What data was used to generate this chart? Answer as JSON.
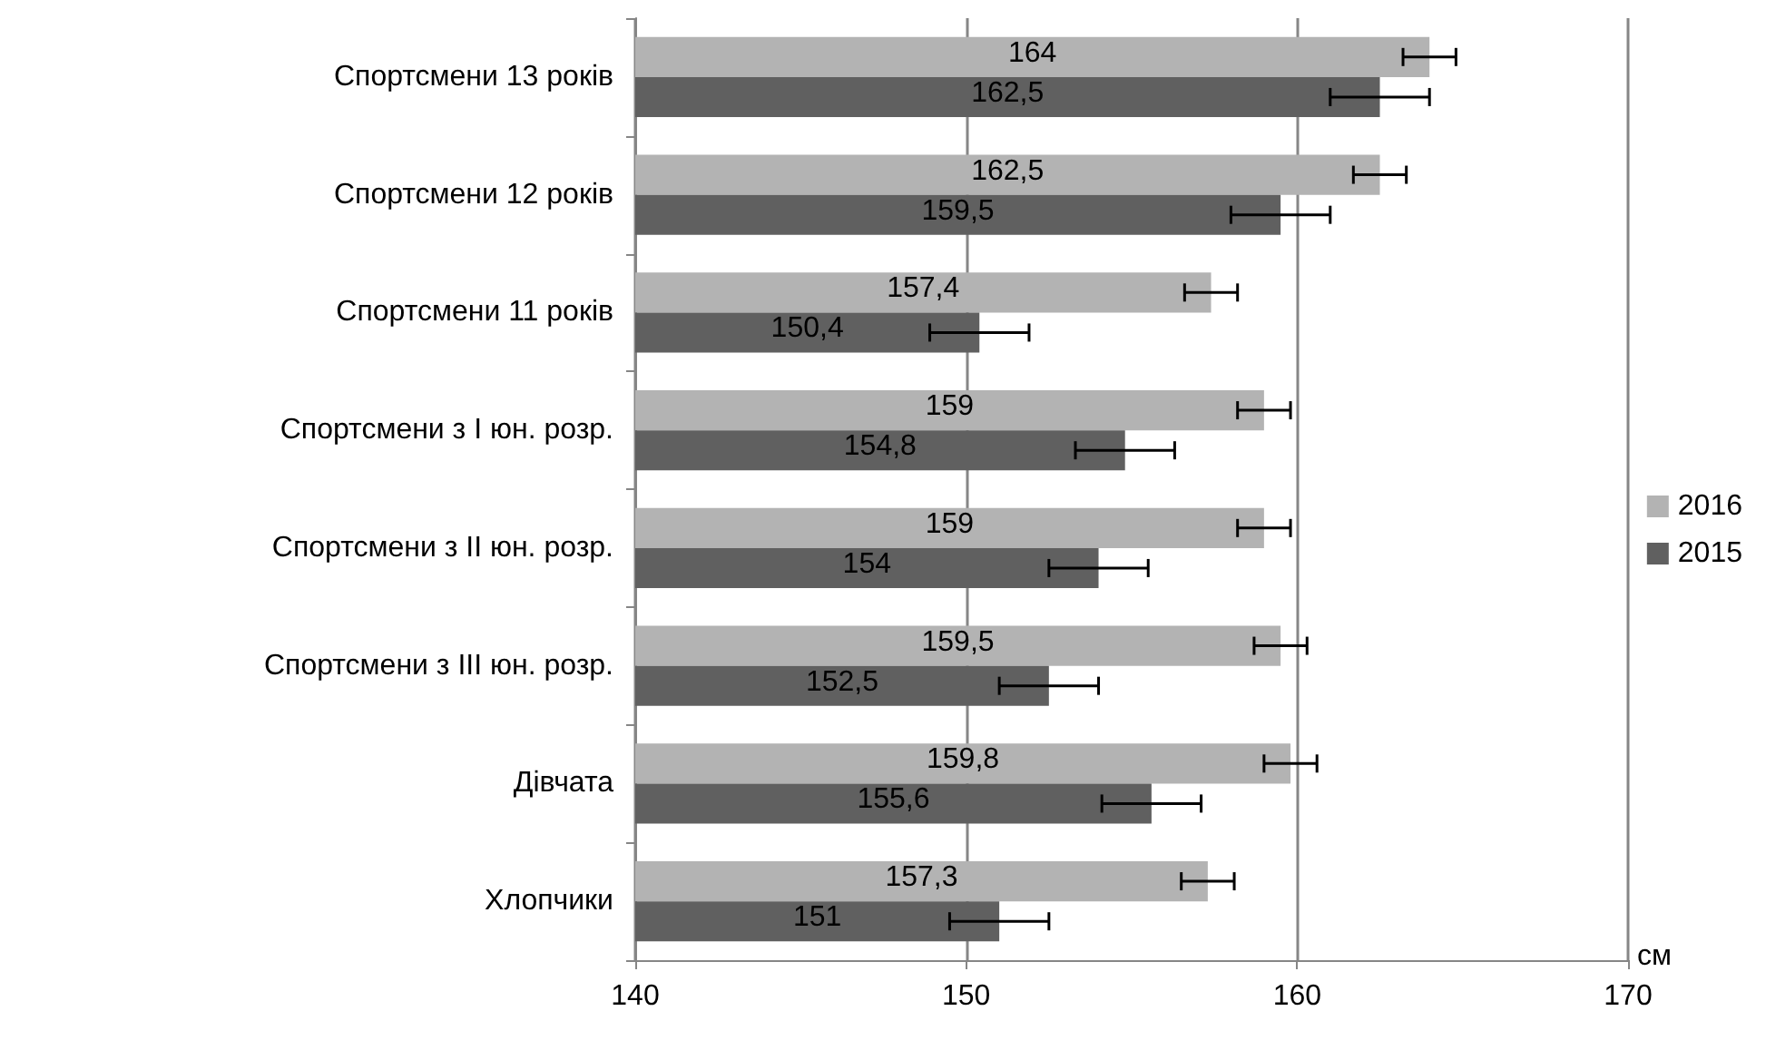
{
  "chart_data": {
    "type": "bar",
    "orientation": "horizontal",
    "xlabel": "см",
    "categories": [
      "Спортсмени 13 років",
      "Спортсмени 12 років",
      "Спортсмени 11 років",
      "Спортсмени з І юн. розр.",
      "Спортсмени з ІІ юн. розр.",
      "Спортсмени з ІІІ юн. розр.",
      "Дівчата",
      "Хлопчики"
    ],
    "series": [
      {
        "name": "2016",
        "color": "#b3b3b3",
        "values": [
          164,
          162.5,
          157.4,
          159,
          159,
          159.5,
          159.8,
          157.3
        ],
        "errors": [
          0.8,
          0.8,
          0.8,
          0.8,
          0.8,
          0.8,
          0.8,
          0.8
        ],
        "value_labels": [
          "164",
          "162,5",
          "157,4",
          "159",
          "159",
          "159,5",
          "159,8",
          "157,3"
        ]
      },
      {
        "name": "2015",
        "color": "#606060",
        "values": [
          162.5,
          159.5,
          150.4,
          154.8,
          154,
          152.5,
          155.6,
          151
        ],
        "errors": [
          1.5,
          1.5,
          1.5,
          1.5,
          1.5,
          1.5,
          1.5,
          1.5
        ],
        "value_labels": [
          "162,5",
          "159,5",
          "150,4",
          "154,8",
          "154",
          "152,5",
          "155,6",
          "151"
        ]
      }
    ],
    "xlim": [
      140,
      170
    ],
    "xticks": [
      140,
      150,
      160,
      170
    ],
    "grid": "x",
    "legend": "right"
  }
}
